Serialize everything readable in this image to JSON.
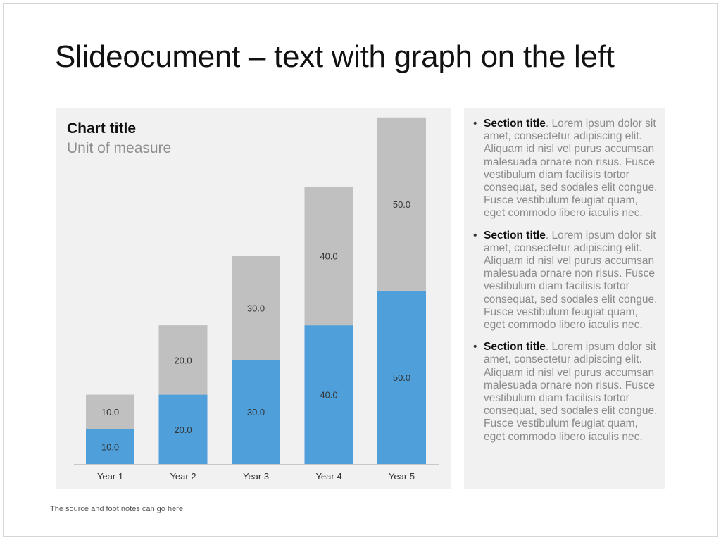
{
  "slide": {
    "title": "Slideocument – text with graph on the left",
    "footnote": "The source and foot notes can go here"
  },
  "chart_data": {
    "type": "bar",
    "stacked": true,
    "title": "Chart title",
    "subtitle": "Unit of measure",
    "categories": [
      "Year 1",
      "Year 2",
      "Year 3",
      "Year 4",
      "Year 5"
    ],
    "series": [
      {
        "values": [
          10.0,
          20.0,
          30.0,
          40.0,
          50.0
        ],
        "color": "#4f9fdb"
      },
      {
        "values": [
          10.0,
          20.0,
          30.0,
          40.0,
          50.0
        ],
        "color": "#c0c0c0"
      }
    ],
    "ylim": [
      0,
      100
    ],
    "grid": false,
    "legend": "none",
    "data_labels": true
  },
  "text_panel": {
    "items": [
      {
        "heading": "Section title",
        "body": ". Lorem ipsum dolor sit amet, consectetur adipiscing elit. Aliquam id nisl vel purus accumsan malesuada ornare non risus. Fusce vestibulum diam facilisis tortor consequat, sed sodales elit congue. Fusce vestibulum feugiat quam, eget commodo libero iaculis nec."
      },
      {
        "heading": "Section title",
        "body": ". Lorem ipsum dolor sit amet, consectetur adipiscing elit. Aliquam id nisl vel purus accumsan malesuada ornare non risus. Fusce vestibulum diam facilisis tortor consequat, sed sodales elit congue. Fusce vestibulum feugiat quam, eget commodo libero iaculis nec."
      },
      {
        "heading": "Section title",
        "body": ". Lorem ipsum dolor sit amet, consectetur adipiscing elit. Aliquam id nisl vel purus accumsan malesuada ornare non risus. Fusce vestibulum diam facilisis tortor consequat, sed sodales elit congue. Fusce vestibulum feugiat quam, eget commodo libero iaculis nec."
      }
    ]
  }
}
